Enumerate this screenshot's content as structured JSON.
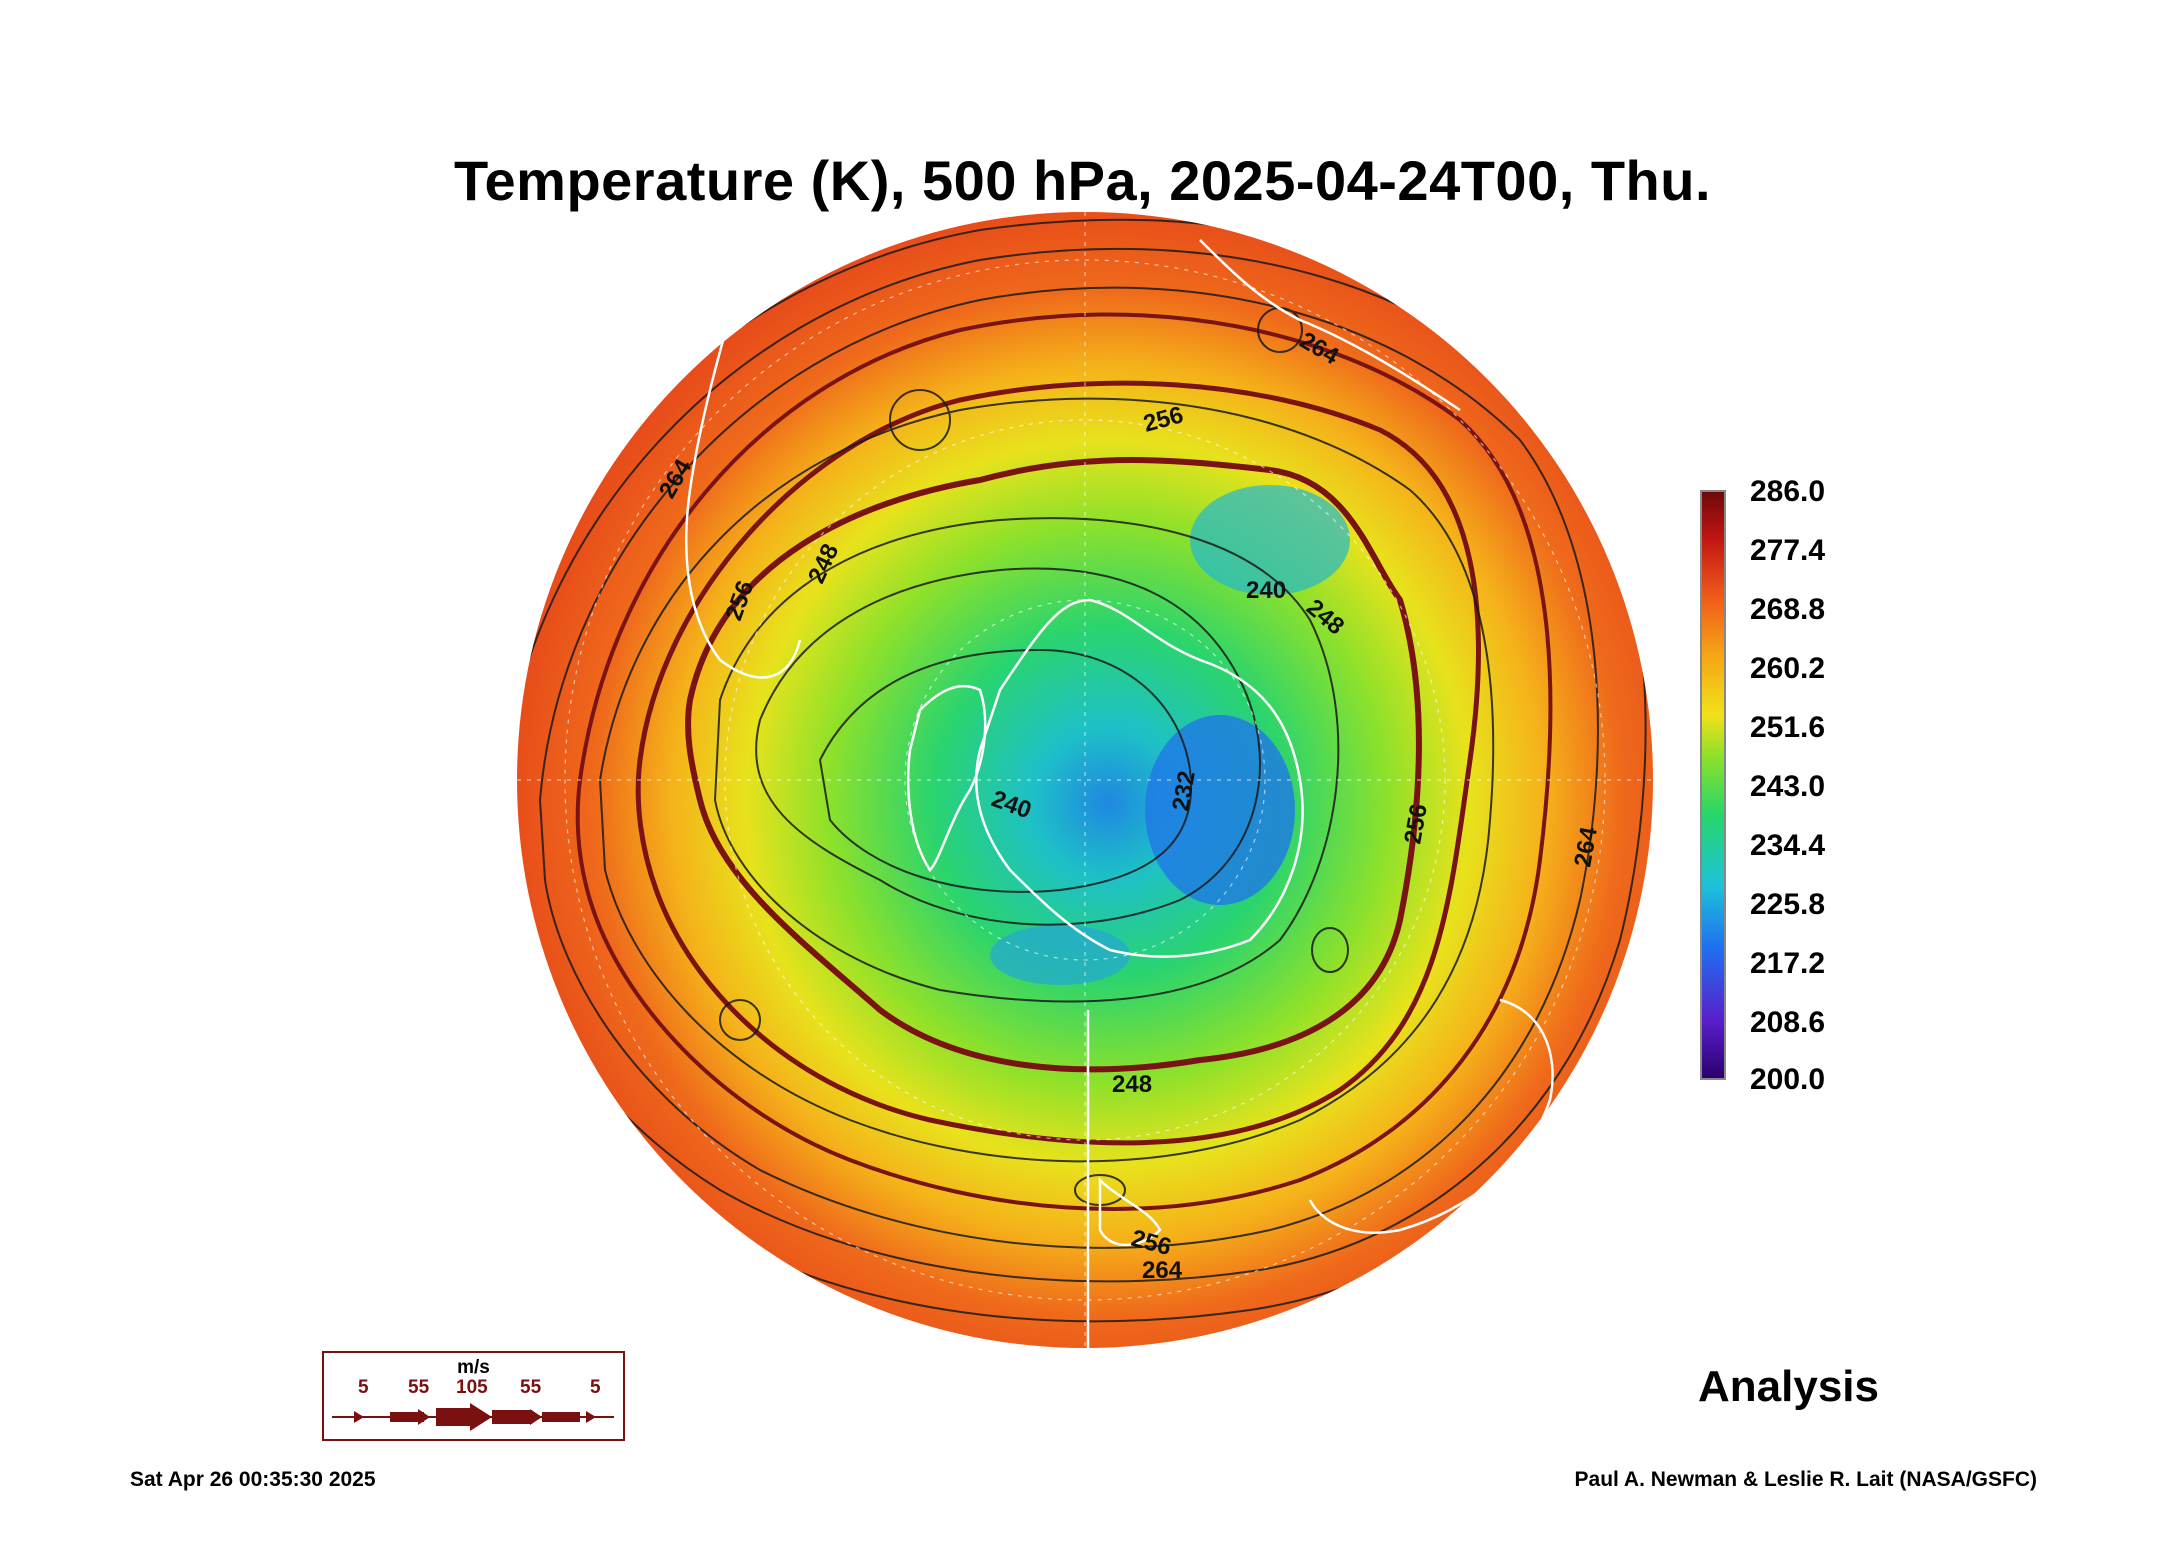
{
  "title": "Temperature (K), 500 hPa, 2025-04-24T00, Thu.",
  "map": {
    "projection": "polar stereographic (south pole)",
    "fill_variable": "temperature",
    "contour_labels": [
      "264",
      "256",
      "248",
      "240",
      "232",
      "240",
      "248",
      "256",
      "264",
      "248",
      "256",
      "264",
      "256",
      "264"
    ]
  },
  "colorbar": {
    "ticks": [
      "286.0",
      "277.4",
      "268.8",
      "260.2",
      "251.6",
      "243.0",
      "234.4",
      "225.8",
      "217.2",
      "208.6",
      "200.0"
    ],
    "colors": [
      "#2a006e",
      "#5a1fcc",
      "#1f6ef0",
      "#1ec2d8",
      "#27d66a",
      "#8fe12a",
      "#f2e11a",
      "#f5a515",
      "#ef5a1a",
      "#c01512",
      "#6b0a0a"
    ]
  },
  "wind_legend": {
    "unit": "m/s",
    "values": [
      "5",
      "55",
      "105",
      "55",
      "5"
    ]
  },
  "analysis_label": "Analysis",
  "footer": {
    "timestamp": "Sat Apr 26 00:35:30 2025",
    "credit": "Paul A. Newman & Leslie R. Lait (NASA/GSFC)"
  }
}
